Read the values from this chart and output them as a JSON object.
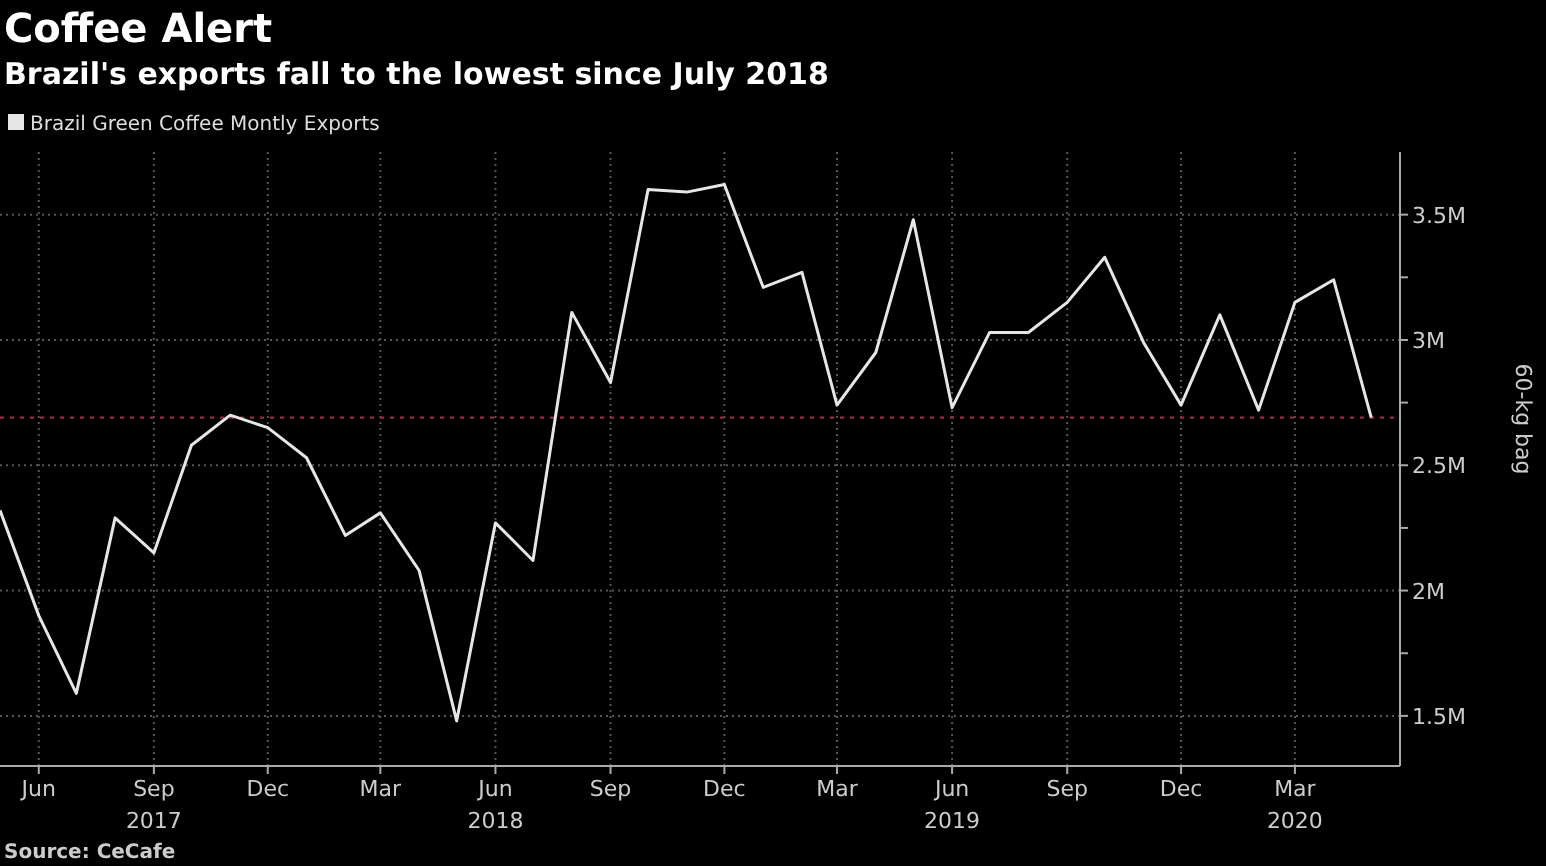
{
  "chart_data": {
    "type": "line",
    "title": "Coffee Alert",
    "subtitle": "Brazil's exports fall to the lowest since July 2018",
    "ylabel": "60-kg bag",
    "annotations": [
      "Source: CeCafe"
    ],
    "x": [
      "2017-05",
      "2017-06",
      "2017-07",
      "2017-08",
      "2017-09",
      "2017-10",
      "2017-11",
      "2017-12",
      "2018-01",
      "2018-02",
      "2018-03",
      "2018-04",
      "2018-05",
      "2018-06",
      "2018-07",
      "2018-08",
      "2018-09",
      "2018-10",
      "2018-11",
      "2018-12",
      "2019-01",
      "2019-02",
      "2019-03",
      "2019-04",
      "2019-05",
      "2019-06",
      "2019-07",
      "2019-08",
      "2019-09",
      "2019-10",
      "2019-11",
      "2019-12",
      "2020-01",
      "2020-02",
      "2020-03",
      "2020-04",
      "2020-05"
    ],
    "series": [
      {
        "name": "Brazil Green Coffee Montly Exports",
        "color": "#e6e6e6",
        "values": [
          2.32,
          1.9,
          1.59,
          2.29,
          2.15,
          2.58,
          2.7,
          2.65,
          2.53,
          2.22,
          2.31,
          2.08,
          1.48,
          2.27,
          2.12,
          3.11,
          2.83,
          3.6,
          3.59,
          3.62,
          3.21,
          3.27,
          2.74,
          2.95,
          3.48,
          2.73,
          3.03,
          3.03,
          3.15,
          3.33,
          2.99,
          2.74,
          3.1,
          2.72,
          3.15,
          3.24,
          2.69
        ]
      }
    ],
    "xlim": [
      "2017-05-01",
      "2020-05-24"
    ],
    "xticks": [
      {
        "value": "2017-06",
        "label": "Jun"
      },
      {
        "value": "2017-09",
        "label": "Sep\n2017"
      },
      {
        "value": "2017-12",
        "label": "Dec"
      },
      {
        "value": "2018-03",
        "label": "Mar"
      },
      {
        "value": "2018-06",
        "label": "Jun\n2018"
      },
      {
        "value": "2018-09",
        "label": "Sep"
      },
      {
        "value": "2018-12",
        "label": "Dec"
      },
      {
        "value": "2019-03",
        "label": "Mar"
      },
      {
        "value": "2019-06",
        "label": "Jun\n2019"
      },
      {
        "value": "2019-09",
        "label": "Sep"
      },
      {
        "value": "2019-12",
        "label": "Dec"
      },
      {
        "value": "2020-03",
        "label": "Mar\n2020"
      }
    ],
    "ylim": [
      1.3,
      3.75
    ],
    "yticks": [
      {
        "value": 1.5,
        "label": "1.5M"
      },
      {
        "value": 1.75,
        "label": null
      },
      {
        "value": 2,
        "label": "2M"
      },
      {
        "value": 2.25,
        "label": null
      },
      {
        "value": 2.5,
        "label": "2.5M"
      },
      {
        "value": 2.75,
        "label": null
      },
      {
        "value": 3,
        "label": "3M"
      },
      {
        "value": 3.25,
        "label": null
      },
      {
        "value": 3.5,
        "label": "3.5M"
      }
    ],
    "ref_lines": [
      {
        "axis": "y",
        "value": 2.69,
        "color": "#a0283a",
        "line_style": "dotted"
      }
    ],
    "grid": true,
    "legend": "top left",
    "marker": "none",
    "line_style": "solid"
  }
}
